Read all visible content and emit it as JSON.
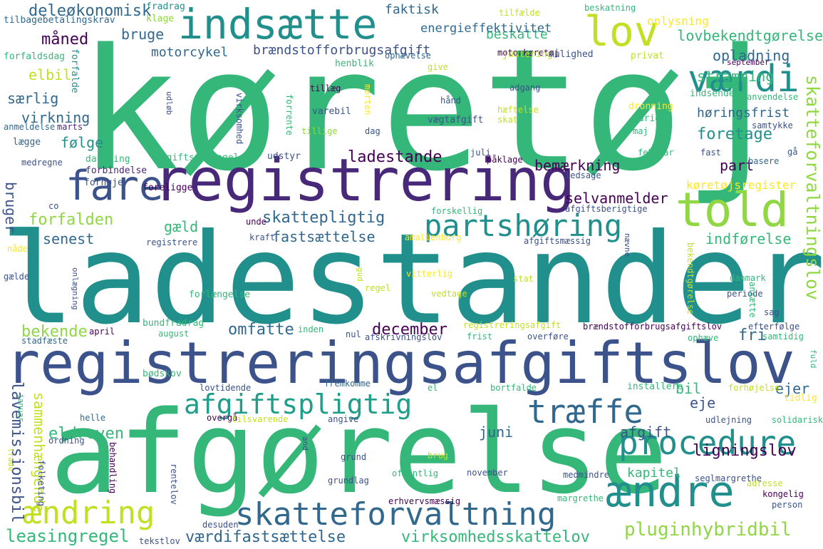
{
  "palette": {
    "background": "#ffffff",
    "teal": "#21908d",
    "green": "#35b779",
    "lightgreen": "#90d743",
    "navy": "#31688e",
    "indigo": "#3b528b",
    "purple": "#440154",
    "darkpurple": "#482878",
    "yellow": "#fde725",
    "lime": "#c2df23",
    "cyan": "#1f9e89"
  },
  "words": [
    {
      "text": "køretøj",
      "color": "#35b779"
    },
    {
      "text": "ladestander",
      "color": "#21908d"
    },
    {
      "text": "afgørelse",
      "color": "#35b779"
    },
    {
      "text": "registreringsafgiftslov",
      "color": "#3b528b"
    },
    {
      "text": "registrering",
      "color": "#482878"
    },
    {
      "text": "indsætte",
      "color": "#21908d"
    },
    {
      "text": "told",
      "color": "#90d743"
    },
    {
      "text": "lov",
      "color": "#c2df23"
    },
    {
      "text": "værdi",
      "color": "#21908d"
    },
    {
      "text": "fare",
      "color": "#3b528b"
    },
    {
      "text": "partshøring",
      "color": "#21908d"
    },
    {
      "text": "skatteforvaltning",
      "color": "#31688e"
    },
    {
      "text": "ændre",
      "color": "#21908d"
    },
    {
      "text": "procedure",
      "color": "#21908d"
    },
    {
      "text": "træffe",
      "color": "#31688e"
    },
    {
      "text": "afgiftspligtig",
      "color": "#1f9e89"
    },
    {
      "text": "ændring",
      "color": "#c2df23"
    },
    {
      "text": "skatteforvaltningslov",
      "color": "#90d743"
    },
    {
      "text": "pluginhybridbil",
      "color": "#90d743"
    },
    {
      "text": "leasingregel",
      "color": "#35b779"
    },
    {
      "text": "værdifastsættelse",
      "color": "#31688e"
    },
    {
      "text": "virksomhedsskattelov",
      "color": "#35b779"
    },
    {
      "text": "lavemissionsbil",
      "color": "#3b528b"
    },
    {
      "text": "sammenhængende",
      "color": "#c2df23"
    },
    {
      "text": "eldreven",
      "color": "#35b779"
    },
    {
      "text": "ligningslov",
      "color": "#440154"
    },
    {
      "text": "kapitel",
      "color": "#35b779"
    },
    {
      "text": "omfatte",
      "color": "#31688e"
    },
    {
      "text": "december",
      "color": "#440154"
    },
    {
      "text": "bekende",
      "color": "#90d743"
    },
    {
      "text": "juni",
      "color": "#31688e"
    },
    {
      "text": "afgift",
      "color": "#3b528b"
    },
    {
      "text": "bil",
      "color": "#35b779"
    },
    {
      "text": "ejer",
      "color": "#31688e"
    },
    {
      "text": "eje",
      "color": "#3b528b"
    },
    {
      "text": "fri",
      "color": "#31688e"
    },
    {
      "text": "deleøkonomisk",
      "color": "#31688e"
    },
    {
      "text": "måned",
      "color": "#440154"
    },
    {
      "text": "bruge",
      "color": "#31688e"
    },
    {
      "text": "motorcykel",
      "color": "#31688e"
    },
    {
      "text": "brændstofforbrugsafgift",
      "color": "#3b528b"
    },
    {
      "text": "elbil",
      "color": "#c2df23"
    },
    {
      "text": "særlig",
      "color": "#31688e"
    },
    {
      "text": "virkning",
      "color": "#31688e"
    },
    {
      "text": "følge",
      "color": "#21908d"
    },
    {
      "text": "ladestande",
      "color": "#440154"
    },
    {
      "text": "bemærkning",
      "color": "#440154"
    },
    {
      "text": "part",
      "color": "#440154"
    },
    {
      "text": "selvanmelder",
      "color": "#440154"
    },
    {
      "text": "foretage",
      "color": "#21908d"
    },
    {
      "text": "høringsfrist",
      "color": "#31688e"
    },
    {
      "text": "stramning",
      "color": "#35b779"
    },
    {
      "text": "opladning",
      "color": "#31688e"
    },
    {
      "text": "lovbekendtgørelse",
      "color": "#35b779"
    },
    {
      "text": "beskatte",
      "color": "#35b779"
    },
    {
      "text": "faktisk",
      "color": "#31688e"
    },
    {
      "text": "energieffektivitet",
      "color": "#31688e"
    },
    {
      "text": "skattepligtig",
      "color": "#31688e"
    },
    {
      "text": "fastsættelse",
      "color": "#31688e"
    },
    {
      "text": "forfalden",
      "color": "#90d743"
    },
    {
      "text": "gæld",
      "color": "#35b779"
    },
    {
      "text": "senest",
      "color": "#31688e"
    },
    {
      "text": "bruger",
      "color": "#3b528b"
    },
    {
      "text": "indførelse",
      "color": "#35b779"
    },
    {
      "text": "køretøjsregister",
      "color": "#fde725"
    },
    {
      "text": "fradrag",
      "color": "#21908d"
    },
    {
      "text": "klage",
      "color": "#90d743"
    },
    {
      "text": "tilbagebetalingskrav",
      "color": "#31688e"
    },
    {
      "text": "forfaldsdag",
      "color": "#35b779"
    },
    {
      "text": "forfalde",
      "color": "#21908d"
    },
    {
      "text": "anmeldelse",
      "color": "#31688e"
    },
    {
      "text": "marts",
      "color": "#482878"
    },
    {
      "text": "lægge",
      "color": "#31688e"
    },
    {
      "text": "medregne",
      "color": "#3b528b"
    },
    {
      "text": "datering",
      "color": "#35b779"
    },
    {
      "text": "forbindelse",
      "color": "#482878"
    },
    {
      "text": "forhøje",
      "color": "#3b528b"
    },
    {
      "text": "foreligge",
      "color": "#440154"
    },
    {
      "text": "afgiftsfritagelse",
      "color": "#35b779"
    },
    {
      "text": "udstyr",
      "color": "#3b528b"
    },
    {
      "text": "co",
      "color": "#3b528b"
    },
    {
      "text": "nåde",
      "color": "#fde725"
    },
    {
      "text": "gælde",
      "color": "#3b528b"
    },
    {
      "text": "tilfælde",
      "color": "#c2df23"
    },
    {
      "text": "motorkøretøj",
      "color": "#440154"
    },
    {
      "text": "oplysning",
      "color": "#fde725"
    },
    {
      "text": "beskatning",
      "color": "#35b779"
    },
    {
      "text": "ophævelse",
      "color": "#31688e"
    },
    {
      "text": "henblik",
      "color": "#35b779"
    },
    {
      "text": "give",
      "color": "#c2df23"
    },
    {
      "text": "justering",
      "color": "#c2df23"
    },
    {
      "text": "mulighed",
      "color": "#3b528b"
    },
    {
      "text": "privat",
      "color": "#c2df23"
    },
    {
      "text": "september",
      "color": "#440154"
    },
    {
      "text": "tillæg",
      "color": "#440154"
    },
    {
      "text": "adgang",
      "color": "#3b528b"
    },
    {
      "text": "hånd",
      "color": "#3b528b"
    },
    {
      "text": "anvendelse",
      "color": "#35b779"
    },
    {
      "text": "indsende",
      "color": "#35b779"
    },
    {
      "text": "dronning",
      "color": "#fde725"
    },
    {
      "text": "varebil",
      "color": "#3b528b"
    },
    {
      "text": "hæftelse",
      "color": "#c2df23"
    },
    {
      "text": "skat",
      "color": "#c2df23"
    },
    {
      "text": "vægtafgift",
      "color": "#3b528b"
    },
    {
      "text": "tillige",
      "color": "#90d743"
    },
    {
      "text": "dag",
      "color": "#3b528b"
    },
    {
      "text": "varig",
      "color": "#35b779"
    },
    {
      "text": "maj",
      "color": "#35b779"
    },
    {
      "text": "samtykke",
      "color": "#3b528b"
    },
    {
      "text": "juli",
      "color": "#3b528b"
    },
    {
      "text": "påklage",
      "color": "#440154"
    },
    {
      "text": "februar",
      "color": "#35b779"
    },
    {
      "text": "fast",
      "color": "#3b528b"
    },
    {
      "text": "basere",
      "color": "#31688e"
    },
    {
      "text": "gå",
      "color": "#3b528b"
    },
    {
      "text": "ledsage",
      "color": "#3b528b"
    },
    {
      "text": "forskellig",
      "color": "#35b779"
    },
    {
      "text": "afgiftsberigtige",
      "color": "#3b528b"
    },
    {
      "text": "unde",
      "color": "#440154"
    },
    {
      "text": "kraft",
      "color": "#3b528b"
    },
    {
      "text": "afgiftsmæssig",
      "color": "#3b528b"
    },
    {
      "text": "amalienborg",
      "color": "#fde725"
    },
    {
      "text": "registrere",
      "color": "#3b528b"
    },
    {
      "text": "forlængelse",
      "color": "#35b779"
    },
    {
      "text": "regel",
      "color": "#c2df23"
    },
    {
      "text": "vedtage",
      "color": "#c2df23"
    },
    {
      "text": "vitterlig",
      "color": "#fde725"
    },
    {
      "text": "stat",
      "color": "#c2df23"
    },
    {
      "text": "danmark",
      "color": "#35b779"
    },
    {
      "text": "periode",
      "color": "#3b528b"
    },
    {
      "text": "sag",
      "color": "#3b528b"
    },
    {
      "text": "bundfradrag",
      "color": "#35b779"
    },
    {
      "text": "august",
      "color": "#35b779"
    },
    {
      "text": "april",
      "color": "#440154"
    },
    {
      "text": "inden",
      "color": "#35b779"
    },
    {
      "text": "registreringsafgift",
      "color": "#c2df23"
    },
    {
      "text": "brændstofforbrugsafgiftslov",
      "color": "#440154"
    },
    {
      "text": "efterfølge",
      "color": "#3b528b"
    },
    {
      "text": "samtidig",
      "color": "#35b779"
    },
    {
      "text": "stadfæste",
      "color": "#31688e"
    },
    {
      "text": "nul",
      "color": "#3b528b"
    },
    {
      "text": "afskrivningslov",
      "color": "#3b528b"
    },
    {
      "text": "frist",
      "color": "#35b779"
    },
    {
      "text": "overføre",
      "color": "#3b528b"
    },
    {
      "text": "ophæve",
      "color": "#35b779"
    },
    {
      "text": "bødskov",
      "color": "#35b779"
    },
    {
      "text": "lovtidende",
      "color": "#3b528b"
    },
    {
      "text": "fremkomme",
      "color": "#31688e"
    },
    {
      "text": "el",
      "color": "#35b779"
    },
    {
      "text": "bortfalde",
      "color": "#35b779"
    },
    {
      "text": "installere",
      "color": "#35b779"
    },
    {
      "text": "forhøjelse",
      "color": "#c2df23"
    },
    {
      "text": "tidlig",
      "color": "#fde725"
    },
    {
      "text": "januar",
      "color": "#35b779"
    },
    {
      "text": "helle",
      "color": "#31688e"
    },
    {
      "text": "overgå",
      "color": "#440154"
    },
    {
      "text": "tilsvarende",
      "color": "#c2df23"
    },
    {
      "text": "angive",
      "color": "#3b528b"
    },
    {
      "text": "udlejning",
      "color": "#3b528b"
    },
    {
      "text": "solidarisk",
      "color": "#35b779"
    },
    {
      "text": "ordning",
      "color": "#3b528b"
    },
    {
      "text": "grund",
      "color": "#3b528b"
    },
    {
      "text": "brug",
      "color": "#c2df23"
    },
    {
      "text": "offentlig",
      "color": "#35b779"
    },
    {
      "text": "november",
      "color": "#3b528b"
    },
    {
      "text": "medmindre",
      "color": "#3b528b"
    },
    {
      "text": "grundlag",
      "color": "#3b528b"
    },
    {
      "text": "seglmargrethe",
      "color": "#3b528b"
    },
    {
      "text": "adresse",
      "color": "#c2df23"
    },
    {
      "text": "kongelig",
      "color": "#440154"
    },
    {
      "text": "person",
      "color": "#3b528b"
    },
    {
      "text": "erhvervsmæssig",
      "color": "#440154"
    },
    {
      "text": "margrethe",
      "color": "#35b779"
    },
    {
      "text": "desuden",
      "color": "#3b528b"
    },
    {
      "text": "tekstlov",
      "color": "#3b528b"
    },
    {
      "text": "folketing",
      "color": "#3b528b"
    },
    {
      "text": "behandling",
      "color": "#440154"
    },
    {
      "text": "trade",
      "color": "#c2df23"
    },
    {
      "text": "rentelov",
      "color": "#3b528b"
    },
    {
      "text": "and",
      "color": "#3b528b"
    },
    {
      "text": "udløb",
      "color": "#3b528b"
    },
    {
      "text": "forrente",
      "color": "#35b779"
    },
    {
      "text": "morten",
      "color": "#fde725"
    },
    {
      "text": "virksomhed",
      "color": "#3b528b"
    },
    {
      "text": "onlægning",
      "color": "#3b528b"
    },
    {
      "text": "gud",
      "color": "#c2df23"
    },
    {
      "text": "nævne",
      "color": "#3b528b"
    },
    {
      "text": "ansætte",
      "color": "#35b779"
    },
    {
      "text": "bekendtgørelse",
      "color": "#c2df23"
    },
    {
      "text": "fuld",
      "color": "#35b779"
    }
  ]
}
